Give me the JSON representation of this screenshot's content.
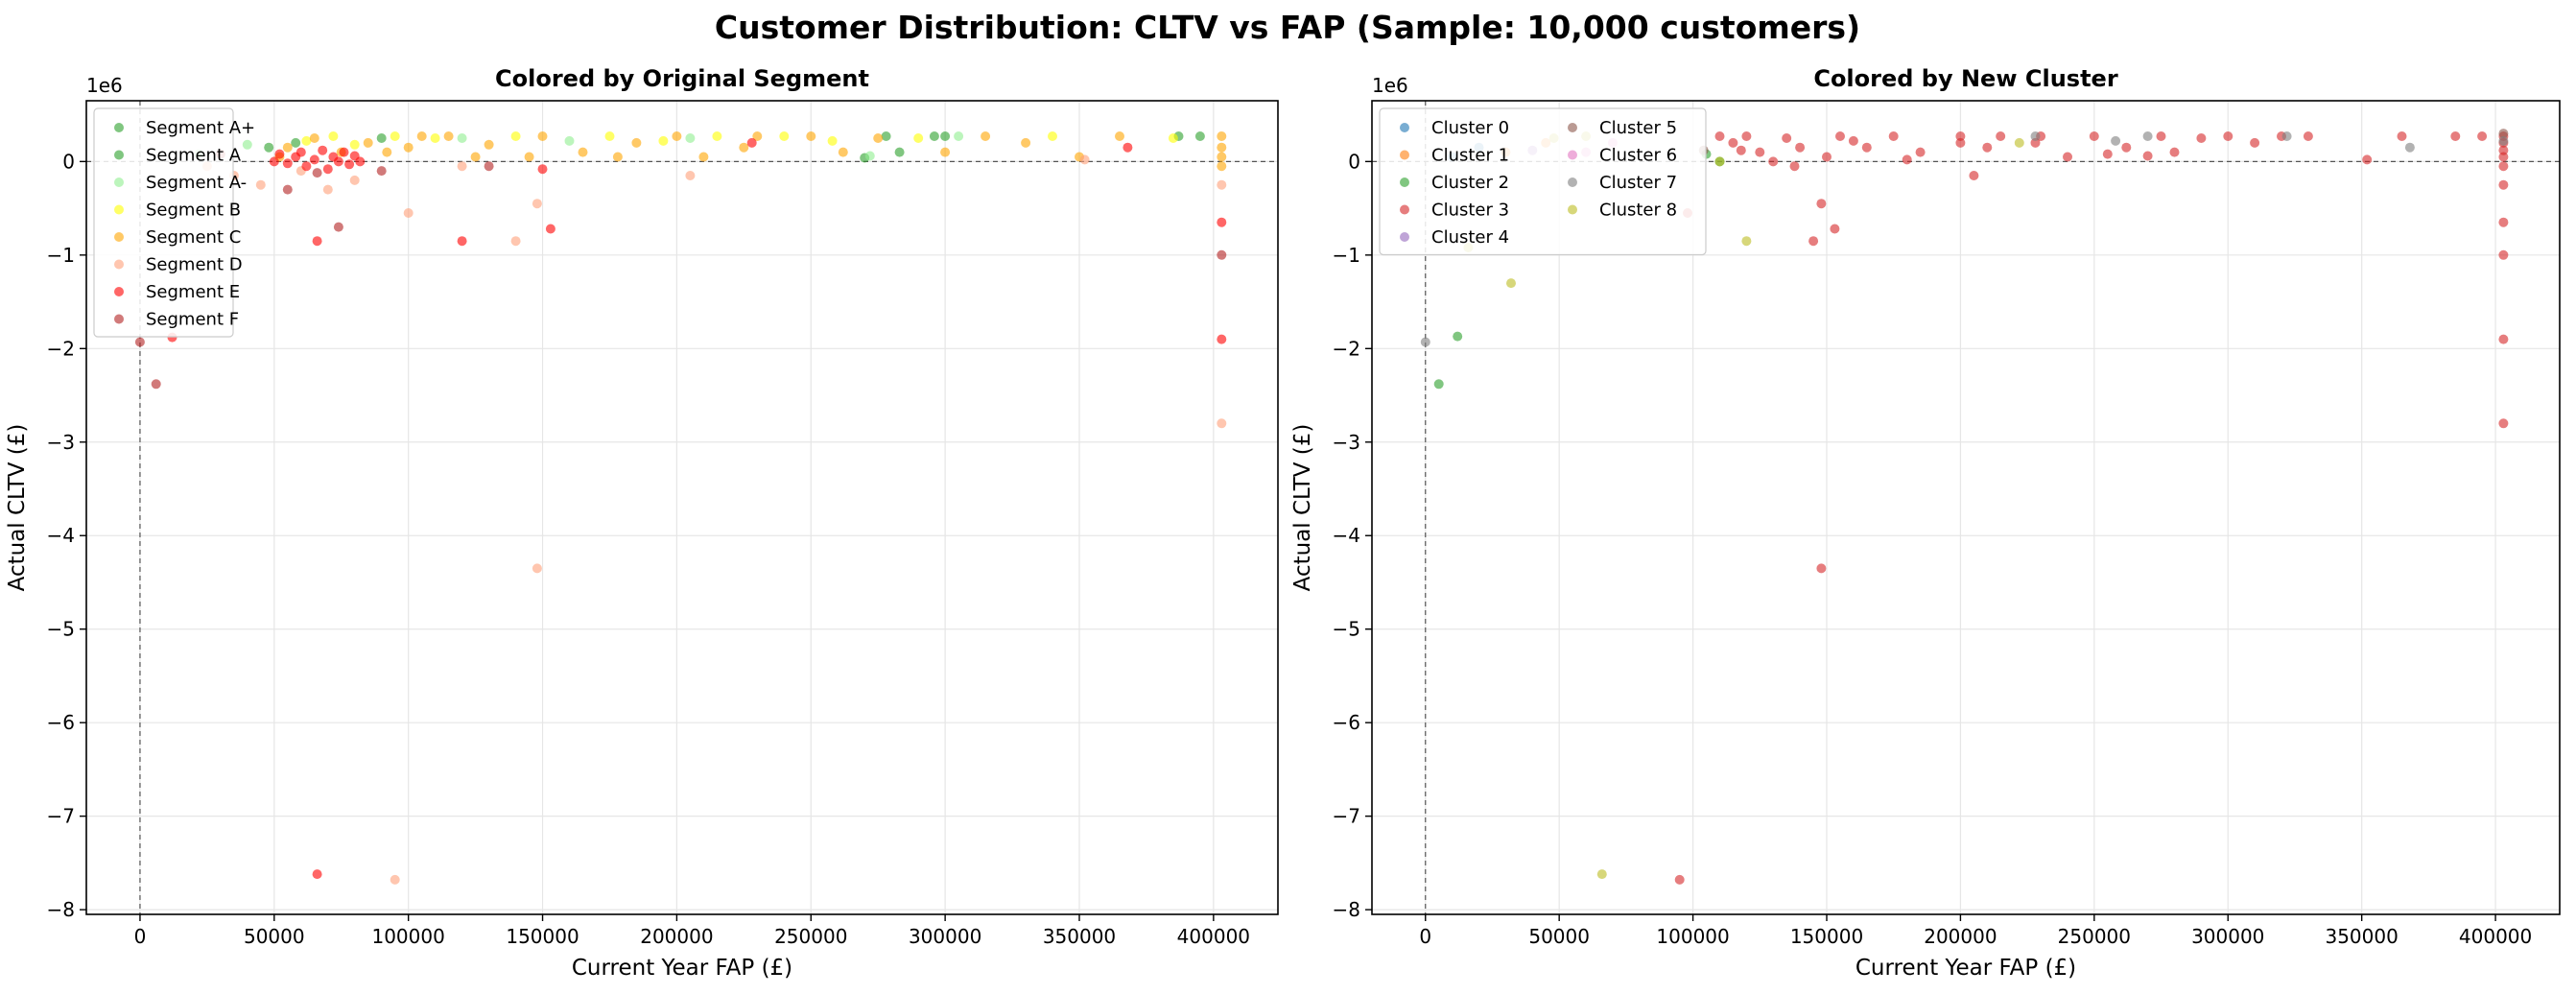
{
  "suptitle": "Customer Distribution: CLTV vs FAP (Sample: 10,000 customers)",
  "chart_data": [
    {
      "type": "scatter",
      "title": "Colored by Original Segment",
      "xlabel": "Current Year FAP (£)",
      "ylabel": "Actual CLTV (£)",
      "y_offset_label": "1e6",
      "xlim": [
        -20000,
        424000
      ],
      "ylim": [
        -8.05,
        0.65
      ],
      "xticks": [
        0,
        50000,
        100000,
        150000,
        200000,
        250000,
        300000,
        350000,
        400000
      ],
      "xtick_labels": [
        "0",
        "50000",
        "100000",
        "150000",
        "200000",
        "250000",
        "300000",
        "350000",
        "400000"
      ],
      "yticks": [
        0,
        -1,
        -2,
        -3,
        -4,
        -5,
        -6,
        -7,
        -8
      ],
      "ytick_labels": [
        "0",
        "−1",
        "−2",
        "−3",
        "−4",
        "−5",
        "−6",
        "−7",
        "−8"
      ],
      "grid": true,
      "reference_lines": {
        "x": 0,
        "y": 0
      },
      "legend_position": "upper-left",
      "legend_columns": 1,
      "series": [
        {
          "name": "Segment A+",
          "color": "#2ca02c",
          "points": [
            [
              278000,
              0.27
            ],
            [
              300000,
              0.27
            ],
            [
              387000,
              0.27
            ],
            [
              296000,
              0.27
            ],
            [
              395000,
              0.27
            ]
          ]
        },
        {
          "name": "Segment A",
          "color": "#2ca02c",
          "points": [
            [
              48000,
              0.15
            ],
            [
              58000,
              0.2
            ],
            [
              90000,
              0.25
            ],
            [
              270000,
              0.04
            ],
            [
              283000,
              0.1
            ]
          ]
        },
        {
          "name": "Segment A-",
          "color": "#90ee90",
          "points": [
            [
              22000,
              0.08
            ],
            [
              40000,
              0.18
            ],
            [
              120000,
              0.25
            ],
            [
              205000,
              0.25
            ],
            [
              305000,
              0.27
            ],
            [
              272000,
              0.06
            ],
            [
              160000,
              0.22
            ]
          ]
        },
        {
          "name": "Segment B",
          "color": "#ffff00",
          "points": [
            [
              62000,
              0.22
            ],
            [
              72000,
              0.27
            ],
            [
              80000,
              0.18
            ],
            [
              95000,
              0.27
            ],
            [
              110000,
              0.25
            ],
            [
              140000,
              0.27
            ],
            [
              175000,
              0.27
            ],
            [
              195000,
              0.22
            ],
            [
              240000,
              0.27
            ],
            [
              290000,
              0.25
            ],
            [
              340000,
              0.27
            ],
            [
              385000,
              0.25
            ],
            [
              215000,
              0.27
            ],
            [
              258000,
              0.22
            ]
          ]
        },
        {
          "name": "Segment C",
          "color": "#ffa500",
          "points": [
            [
              52000,
              0.05
            ],
            [
              55000,
              0.15
            ],
            [
              65000,
              0.25
            ],
            [
              75000,
              0.1
            ],
            [
              85000,
              0.2
            ],
            [
              100000,
              0.15
            ],
            [
              115000,
              0.27
            ],
            [
              125000,
              0.05
            ],
            [
              150000,
              0.27
            ],
            [
              165000,
              0.1
            ],
            [
              185000,
              0.2
            ],
            [
              210000,
              0.05
            ],
            [
              225000,
              0.15
            ],
            [
              250000,
              0.27
            ],
            [
              275000,
              0.25
            ],
            [
              300000,
              0.1
            ],
            [
              330000,
              0.2
            ],
            [
              365000,
              0.27
            ],
            [
              403000,
              0.27
            ],
            [
              403000,
              0.15
            ],
            [
              403000,
              0.05
            ],
            [
              403000,
              -0.05
            ],
            [
              145000,
              0.05
            ],
            [
              200000,
              0.27
            ],
            [
              130000,
              0.18
            ],
            [
              178000,
              0.05
            ],
            [
              230000,
              0.27
            ],
            [
              262000,
              0.1
            ],
            [
              315000,
              0.27
            ],
            [
              350000,
              0.05
            ],
            [
              105000,
              0.27
            ],
            [
              92000,
              0.1
            ]
          ]
        },
        {
          "name": "Segment D",
          "color": "#ffa07a",
          "points": [
            [
              25000,
              -0.05
            ],
            [
              35000,
              -0.15
            ],
            [
              45000,
              -0.25
            ],
            [
              60000,
              -0.1
            ],
            [
              80000,
              -0.2
            ],
            [
              100000,
              -0.55
            ],
            [
              140000,
              -0.85
            ],
            [
              148000,
              -0.45
            ],
            [
              148000,
              -4.35
            ],
            [
              95000,
              -7.68
            ],
            [
              403000,
              -2.8
            ],
            [
              403000,
              -0.25
            ],
            [
              205000,
              -0.15
            ],
            [
              120000,
              -0.05
            ],
            [
              352000,
              0.02
            ],
            [
              70000,
              -0.3
            ]
          ]
        },
        {
          "name": "Segment E",
          "color": "#ff0000",
          "points": [
            [
              50000,
              0.0
            ],
            [
              52000,
              0.08
            ],
            [
              55000,
              -0.02
            ],
            [
              58000,
              0.05
            ],
            [
              60000,
              0.1
            ],
            [
              62000,
              -0.05
            ],
            [
              65000,
              0.02
            ],
            [
              68000,
              0.12
            ],
            [
              70000,
              -0.08
            ],
            [
              72000,
              0.05
            ],
            [
              74000,
              0.0
            ],
            [
              76000,
              0.1
            ],
            [
              78000,
              -0.03
            ],
            [
              80000,
              0.06
            ],
            [
              82000,
              0.0
            ],
            [
              66000,
              -0.85
            ],
            [
              120000,
              -0.85
            ],
            [
              153000,
              -0.72
            ],
            [
              403000,
              -0.65
            ],
            [
              403000,
              -1.9
            ],
            [
              66000,
              -7.62
            ],
            [
              12000,
              -1.88
            ],
            [
              228000,
              0.2
            ],
            [
              150000,
              -0.08
            ],
            [
              368000,
              0.15
            ]
          ]
        },
        {
          "name": "Segment F",
          "color": "#b22222",
          "points": [
            [
              0,
              -1.93
            ],
            [
              6000,
              -2.38
            ],
            [
              55000,
              -0.3
            ],
            [
              66000,
              -0.12
            ],
            [
              74000,
              -0.7
            ],
            [
              90000,
              -0.1
            ],
            [
              403000,
              -1.0
            ],
            [
              130000,
              -0.05
            ],
            [
              30000,
              0.08
            ]
          ]
        }
      ]
    },
    {
      "type": "scatter",
      "title": "Colored by New Cluster",
      "xlabel": "Current Year FAP (£)",
      "ylabel": "Actual CLTV (£)",
      "y_offset_label": "1e6",
      "xlim": [
        -20000,
        424000
      ],
      "ylim": [
        -8.05,
        0.65
      ],
      "xticks": [
        0,
        50000,
        100000,
        150000,
        200000,
        250000,
        300000,
        350000,
        400000
      ],
      "xtick_labels": [
        "0",
        "50000",
        "100000",
        "150000",
        "200000",
        "250000",
        "300000",
        "350000",
        "400000"
      ],
      "yticks": [
        0,
        -1,
        -2,
        -3,
        -4,
        -5,
        -6,
        -7,
        -8
      ],
      "ytick_labels": [
        "0",
        "−1",
        "−2",
        "−3",
        "−4",
        "−5",
        "−6",
        "−7",
        "−8"
      ],
      "grid": true,
      "reference_lines": {
        "x": 0,
        "y": 0
      },
      "legend_position": "upper-left",
      "legend_columns": 2,
      "series": [
        {
          "name": "Cluster 0",
          "color": "#1f77b4",
          "points": [
            [
              10000,
              0.05
            ],
            [
              20000,
              0.15
            ]
          ]
        },
        {
          "name": "Cluster 1",
          "color": "#ff7f0e",
          "points": [
            [
              30000,
              0.1
            ],
            [
              45000,
              0.2
            ]
          ]
        },
        {
          "name": "Cluster 2",
          "color": "#2ca02c",
          "points": [
            [
              12000,
              -1.87
            ],
            [
              5000,
              -2.38
            ],
            [
              105000,
              0.08
            ],
            [
              110000,
              0.0
            ]
          ]
        },
        {
          "name": "Cluster 3",
          "color": "#d62728",
          "points": [
            [
              95000,
              -7.68
            ],
            [
              148000,
              -4.35
            ],
            [
              148000,
              -0.45
            ],
            [
              145000,
              -0.85
            ],
            [
              153000,
              -0.72
            ],
            [
              403000,
              -0.65
            ],
            [
              403000,
              -1.0
            ],
            [
              403000,
              -1.9
            ],
            [
              403000,
              -2.8
            ],
            [
              403000,
              0.27
            ],
            [
              403000,
              0.2
            ],
            [
              403000,
              0.12
            ],
            [
              403000,
              0.05
            ],
            [
              403000,
              -0.05
            ],
            [
              403000,
              -0.25
            ],
            [
              110000,
              0.27
            ],
            [
              115000,
              0.2
            ],
            [
              120000,
              0.27
            ],
            [
              125000,
              0.1
            ],
            [
              130000,
              0.0
            ],
            [
              135000,
              0.25
            ],
            [
              140000,
              0.15
            ],
            [
              150000,
              0.05
            ],
            [
              155000,
              0.27
            ],
            [
              165000,
              0.15
            ],
            [
              175000,
              0.27
            ],
            [
              185000,
              0.1
            ],
            [
              200000,
              0.27
            ],
            [
              205000,
              -0.15
            ],
            [
              210000,
              0.15
            ],
            [
              215000,
              0.27
            ],
            [
              228000,
              0.2
            ],
            [
              240000,
              0.05
            ],
            [
              250000,
              0.27
            ],
            [
              262000,
              0.15
            ],
            [
              275000,
              0.27
            ],
            [
              280000,
              0.1
            ],
            [
              290000,
              0.25
            ],
            [
              300000,
              0.27
            ],
            [
              310000,
              0.2
            ],
            [
              330000,
              0.27
            ],
            [
              352000,
              0.02
            ],
            [
              365000,
              0.27
            ],
            [
              385000,
              0.27
            ],
            [
              395000,
              0.27
            ],
            [
              180000,
              0.02
            ],
            [
              230000,
              0.27
            ],
            [
              255000,
              0.08
            ],
            [
              200000,
              0.2
            ],
            [
              118000,
              0.12
            ],
            [
              138000,
              -0.05
            ],
            [
              160000,
              0.22
            ],
            [
              270000,
              0.06
            ],
            [
              320000,
              0.27
            ],
            [
              98000,
              -0.55
            ]
          ]
        },
        {
          "name": "Cluster 4",
          "color": "#9467bd",
          "points": [
            [
              40000,
              0.12
            ]
          ]
        },
        {
          "name": "Cluster 5",
          "color": "#8c564b",
          "points": [
            [
              403000,
              0.3
            ],
            [
              104000,
              0.12
            ]
          ]
        },
        {
          "name": "Cluster 6",
          "color": "#e377c2",
          "points": [
            [
              60000,
              0.1
            ],
            [
              70000,
              0.2
            ]
          ]
        },
        {
          "name": "Cluster 7",
          "color": "#7f7f7f",
          "points": [
            [
              0,
              -1.93
            ],
            [
              403000,
              0.22
            ],
            [
              258000,
              0.22
            ],
            [
              322000,
              0.27
            ],
            [
              368000,
              0.15
            ],
            [
              270000,
              0.27
            ],
            [
              228000,
              0.27
            ]
          ]
        },
        {
          "name": "Cluster 8",
          "color": "#bcbd22",
          "points": [
            [
              66000,
              -7.62
            ],
            [
              32000,
              -1.3
            ],
            [
              120000,
              -0.85
            ],
            [
              16000,
              -0.92
            ],
            [
              110000,
              0.0
            ],
            [
              222000,
              0.2
            ],
            [
              48000,
              0.25
            ],
            [
              60000,
              0.27
            ]
          ]
        }
      ]
    }
  ]
}
